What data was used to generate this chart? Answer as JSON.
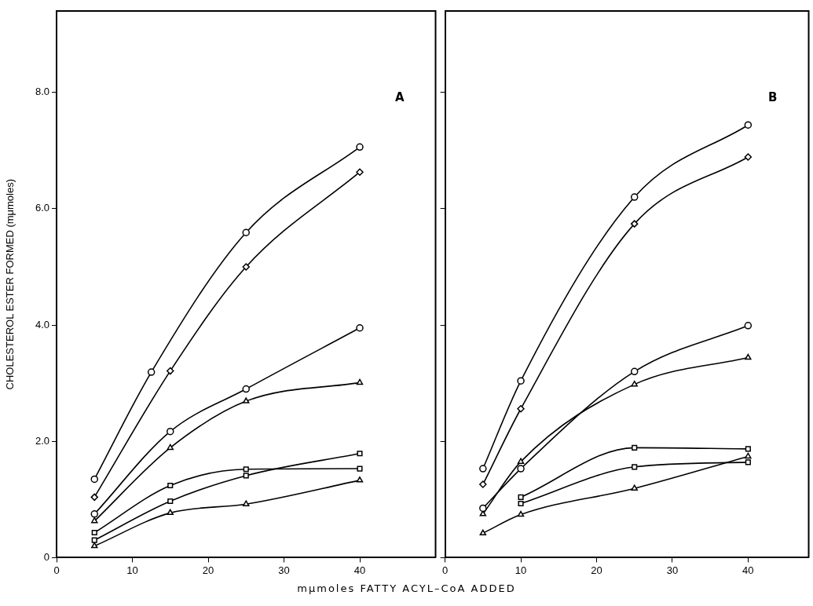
{
  "chart_data": [
    {
      "type": "line",
      "xlabel": "mμmoles FATTY ACYL–CoA ADDED",
      "ylabel": "CHOLESTEROL ESTER FORMED (mμmoles)",
      "annotations": [
        "A"
      ],
      "xlim": [
        0,
        50
      ],
      "xticks": [
        0,
        10,
        20,
        30,
        40
      ],
      "ylim": [
        0,
        9.4
      ],
      "yticks": [
        0,
        {
          "value": 2,
          "label": "2.0"
        },
        {
          "value": 4,
          "label": "4.0"
        },
        {
          "value": 6,
          "label": "6.0"
        },
        {
          "value": 8,
          "label": "8.0"
        }
      ],
      "grid": false,
      "series": [
        {
          "color": "#000000",
          "marker": "circle",
          "x": [
            5,
            12.5,
            25,
            40
          ],
          "values": [
            1.35,
            3.19,
            5.59,
            7.06
          ]
        },
        {
          "color": "#000000",
          "marker": "diamond",
          "x": [
            5,
            15,
            25,
            40
          ],
          "values": [
            1.04,
            3.21,
            5.0,
            6.63
          ]
        },
        {
          "color": "#000000",
          "marker": "circle",
          "x": [
            5,
            15,
            25,
            40
          ],
          "values": [
            0.75,
            2.17,
            2.9,
            3.95
          ]
        },
        {
          "color": "#000000",
          "marker": "triangle",
          "x": [
            5,
            15,
            25,
            40
          ],
          "values": [
            0.63,
            1.89,
            2.69,
            3.01
          ]
        },
        {
          "color": "#000000",
          "marker": "square",
          "x": [
            5,
            15,
            25,
            40
          ],
          "values": [
            0.43,
            1.24,
            1.52,
            1.53
          ]
        },
        {
          "color": "#000000",
          "marker": "square",
          "x": [
            5,
            15,
            25,
            40
          ],
          "values": [
            0.3,
            0.97,
            1.41,
            1.79
          ]
        },
        {
          "color": "#000000",
          "marker": "triangle",
          "x": [
            5,
            15,
            25,
            40
          ],
          "values": [
            0.2,
            0.77,
            0.92,
            1.33
          ]
        }
      ]
    },
    {
      "type": "line",
      "annotations": [
        "B"
      ],
      "tick_labels": "x",
      "xlim": [
        0,
        48
      ],
      "xticks": [
        0,
        10,
        20,
        30,
        40
      ],
      "ylim": [
        0,
        9.4
      ],
      "yticks": [
        0,
        2,
        4,
        6,
        8
      ],
      "grid": false,
      "series": [
        {
          "color": "#000000",
          "marker": "circle",
          "x": [
            5,
            10,
            25,
            40
          ],
          "values": [
            1.53,
            3.04,
            6.2,
            7.44
          ]
        },
        {
          "color": "#000000",
          "marker": "diamond",
          "x": [
            5,
            10,
            25,
            40
          ],
          "values": [
            1.26,
            2.56,
            5.74,
            6.89
          ]
        },
        {
          "color": "#000000",
          "marker": "circle",
          "x": [
            5,
            10,
            25,
            40
          ],
          "values": [
            0.85,
            1.53,
            3.2,
            3.99
          ]
        },
        {
          "color": "#000000",
          "marker": "triangle",
          "x": [
            5,
            10,
            25,
            40
          ],
          "values": [
            0.75,
            1.65,
            2.98,
            3.44
          ]
        },
        {
          "color": "#000000",
          "marker": "square",
          "x": [
            10,
            25,
            40
          ],
          "values": [
            1.04,
            1.89,
            1.87
          ]
        },
        {
          "color": "#000000",
          "marker": "square",
          "x": [
            10,
            25,
            40
          ],
          "values": [
            0.93,
            1.56,
            1.64
          ]
        },
        {
          "color": "#000000",
          "marker": "triangle",
          "x": [
            5,
            10,
            25,
            40
          ],
          "values": [
            0.42,
            0.74,
            1.19,
            1.74
          ]
        }
      ]
    }
  ]
}
